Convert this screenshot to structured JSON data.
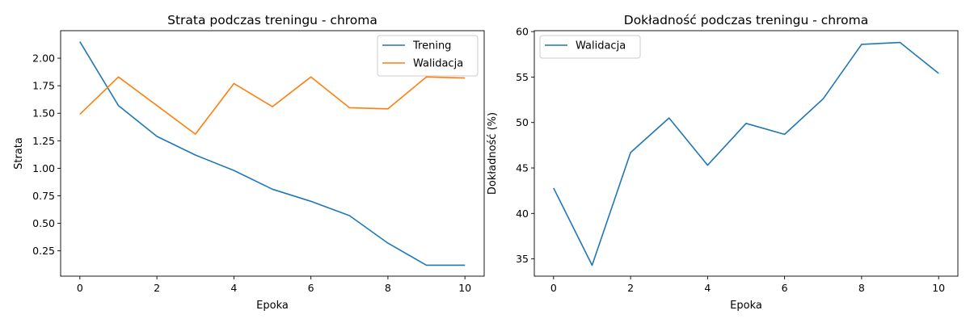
{
  "chart_data": [
    {
      "type": "line",
      "title": "Strata podczas treningu - chroma",
      "xlabel": "Epoka",
      "ylabel": "Strata",
      "x": [
        0,
        1,
        2,
        3,
        4,
        5,
        6,
        7,
        8,
        9,
        10
      ],
      "xlim": [
        -0.5,
        10.5
      ],
      "ylim": [
        0.02,
        2.25
      ],
      "xticks": [
        0,
        2,
        4,
        6,
        8,
        10
      ],
      "yticks": [
        0.25,
        0.5,
        0.75,
        1.0,
        1.25,
        1.5,
        1.75,
        2.0
      ],
      "ytick_labels": [
        "0.25",
        "0.50",
        "0.75",
        "1.00",
        "1.25",
        "1.50",
        "1.75",
        "2.00"
      ],
      "grid": false,
      "legend": "top-right",
      "series": [
        {
          "name": "Trening",
          "color": "#1f77b4",
          "values": [
            2.15,
            1.57,
            1.29,
            1.12,
            0.98,
            0.81,
            0.7,
            0.57,
            0.32,
            0.12,
            0.12
          ]
        },
        {
          "name": "Walidacja",
          "color": "#ff7f0e",
          "values": [
            1.49,
            1.83,
            1.57,
            1.31,
            1.77,
            1.56,
            1.83,
            1.55,
            1.54,
            1.83,
            1.82
          ]
        }
      ]
    },
    {
      "type": "line",
      "title": "Dokładność podczas treningu - chroma",
      "xlabel": "Epoka",
      "ylabel": "Dokładność (%)",
      "x": [
        0,
        1,
        2,
        3,
        4,
        5,
        6,
        7,
        8,
        9,
        10
      ],
      "xlim": [
        -0.5,
        10.5
      ],
      "ylim": [
        33.1,
        60.1
      ],
      "xticks": [
        0,
        2,
        4,
        6,
        8,
        10
      ],
      "yticks": [
        35,
        40,
        45,
        50,
        55,
        60
      ],
      "ytick_labels": [
        "35",
        "40",
        "45",
        "50",
        "55",
        "60"
      ],
      "grid": false,
      "legend": "top-left",
      "series": [
        {
          "name": "Walidacja",
          "color": "#1f77b4",
          "values": [
            42.8,
            34.3,
            46.7,
            50.5,
            45.3,
            49.9,
            48.7,
            52.6,
            58.6,
            58.8,
            55.4
          ]
        }
      ]
    }
  ]
}
